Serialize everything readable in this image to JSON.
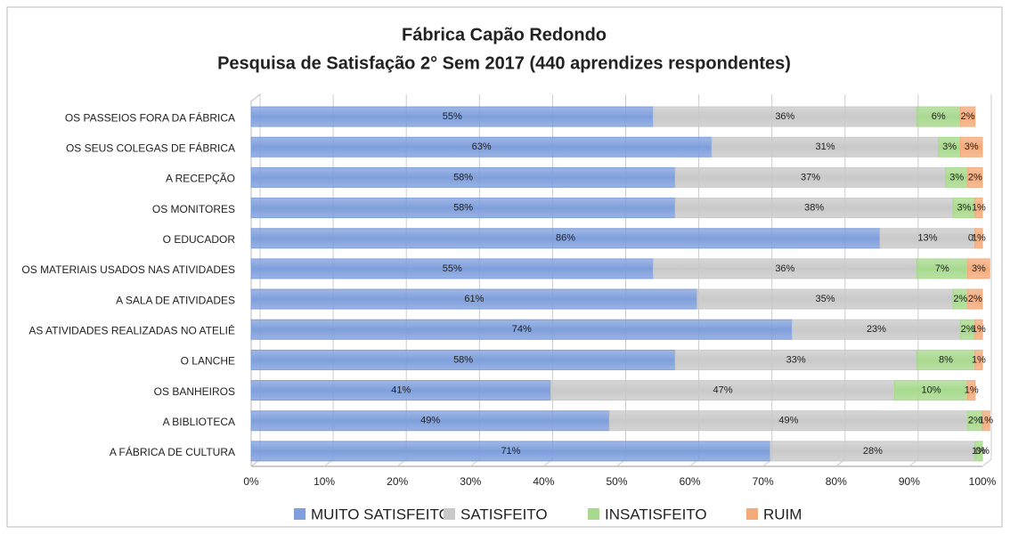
{
  "chart_data": {
    "type": "stacked-barh",
    "title": "Fábrica Capão Redondo",
    "subtitle": "Pesquisa de Satisfação 2° Sem 2017 (440 aprendizes respondentes)",
    "categories": [
      "OS PASSEIOS FORA DA FÁBRICA",
      "OS SEUS COLEGAS DE FÁBRICA",
      "A RECEPÇÃO",
      "OS MONITORES",
      "O EDUCADOR",
      "OS MATERIAIS USADOS NAS ATIVIDADES",
      "A SALA DE ATIVIDADES",
      "AS ATIVIDADES REALIZADAS NO ATELIÊ",
      "O LANCHE",
      "OS BANHEIROS",
      "A BIBLIOTECA",
      "A FÁBRICA DE CULTURA"
    ],
    "series": [
      {
        "name": "MUITO SATISFEITO",
        "color": "#7f9fdc",
        "values": [
          55,
          63,
          58,
          58,
          86,
          55,
          61,
          74,
          58,
          41,
          49,
          71
        ],
        "value_labels": [
          "55%",
          "63%",
          "58%",
          "58%",
          "86%",
          "55%",
          "61%",
          "74%",
          "58%",
          "41%",
          "49%",
          "71%"
        ]
      },
      {
        "name": "SATISFEITO",
        "color": "#c9c9c9",
        "values": [
          36,
          31,
          37,
          38,
          13,
          36,
          35,
          23,
          33,
          47,
          49,
          28
        ],
        "value_labels": [
          "36%",
          "31%",
          "37%",
          "38%",
          "13%",
          "36%",
          "35%",
          "23%",
          "33%",
          "47%",
          "49%",
          "28%"
        ]
      },
      {
        "name": "INSATISFEITO",
        "color": "#a8d98e",
        "values": [
          6,
          3,
          3,
          3,
          0,
          7,
          2,
          2,
          8,
          10,
          2,
          1
        ],
        "value_labels": [
          "6%",
          "3%",
          "3%",
          "3%",
          "0%",
          "7%",
          "2%",
          "2%",
          "8%",
          "10%",
          "2%",
          "1%"
        ]
      },
      {
        "name": "RUIM",
        "color": "#f4ab7c",
        "values": [
          2,
          3,
          2,
          1,
          1,
          3,
          2,
          1,
          1,
          1,
          1,
          0
        ],
        "value_labels": [
          "2%",
          "3%",
          "2%",
          "1%",
          "1%",
          "3%",
          "2%",
          "1%",
          "1%",
          "1%",
          "1%",
          "0%"
        ]
      }
    ],
    "xlim": [
      0,
      100
    ],
    "xticks": [
      {
        "value": 0,
        "label": "0%"
      },
      {
        "value": 10,
        "label": "10%"
      },
      {
        "value": 20,
        "label": "20%"
      },
      {
        "value": 30,
        "label": "30%"
      },
      {
        "value": 40,
        "label": "40%"
      },
      {
        "value": 50,
        "label": "50%"
      },
      {
        "value": 60,
        "label": "60%"
      },
      {
        "value": 70,
        "label": "70%"
      },
      {
        "value": 80,
        "label": "80%"
      },
      {
        "value": 90,
        "label": "90%"
      },
      {
        "value": 100,
        "label": "100%"
      }
    ],
    "grid": true,
    "legend": "bottom"
  }
}
